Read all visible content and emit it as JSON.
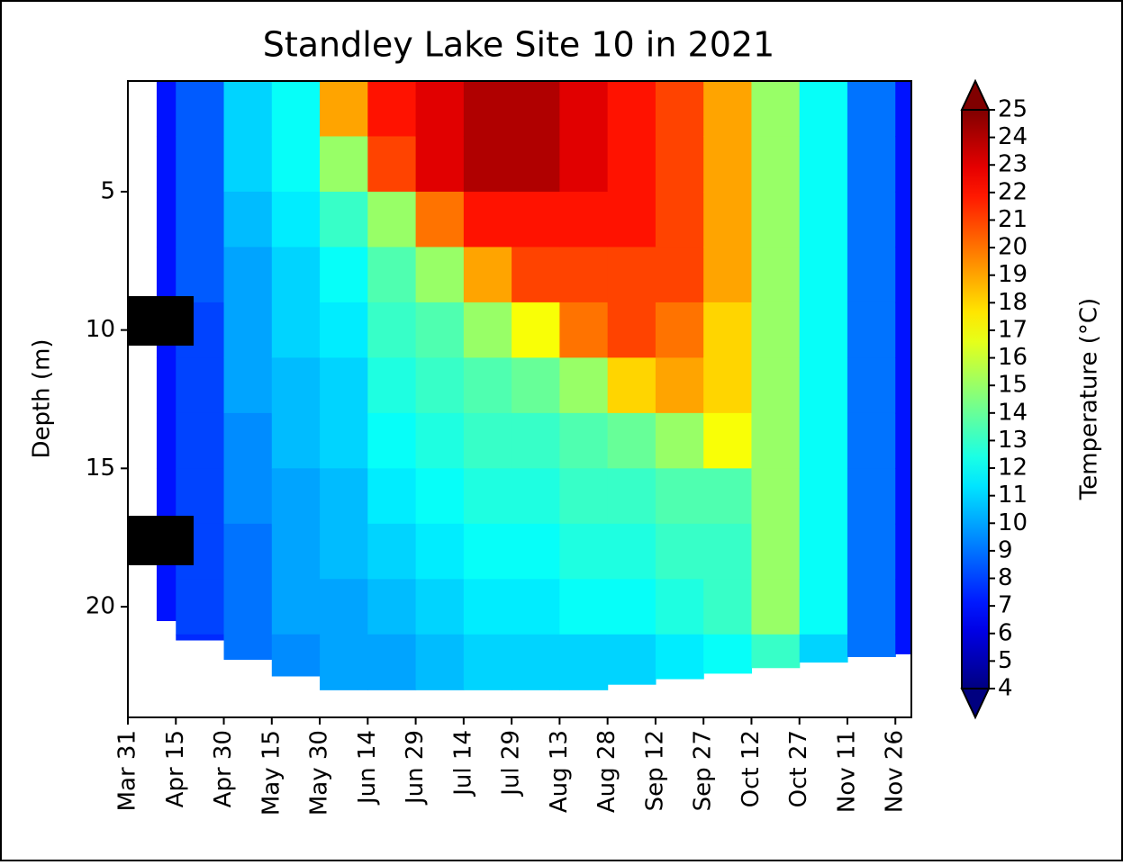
{
  "chart_data": {
    "type": "heatmap",
    "title": "Standley Lake Site 10 in 2021",
    "ylabel": "Depth (m)",
    "colorbar_label": "Temperature (°C)",
    "x": [
      99,
      105,
      120,
      135,
      150,
      165,
      180,
      195,
      210,
      225,
      240,
      255,
      270,
      285,
      300,
      315,
      330
    ],
    "xlim": [
      90,
      335
    ],
    "xticks": [
      {
        "value": 90,
        "label": "Mar 31"
      },
      {
        "value": 105,
        "label": "Apr 15"
      },
      {
        "value": 120,
        "label": "Apr 30"
      },
      {
        "value": 135,
        "label": "May 15"
      },
      {
        "value": 150,
        "label": "May 30"
      },
      {
        "value": 165,
        "label": "Jun 14"
      },
      {
        "value": 180,
        "label": "Jun 29"
      },
      {
        "value": 195,
        "label": "Jul 14"
      },
      {
        "value": 210,
        "label": "Jul 29"
      },
      {
        "value": 225,
        "label": "Aug 13"
      },
      {
        "value": 240,
        "label": "Aug 28"
      },
      {
        "value": 255,
        "label": "Sep 12"
      },
      {
        "value": 270,
        "label": "Sep 27"
      },
      {
        "value": 285,
        "label": "Oct 12"
      },
      {
        "value": 300,
        "label": "Oct 27"
      },
      {
        "value": 315,
        "label": "Nov 11"
      },
      {
        "value": 330,
        "label": "Nov 26"
      }
    ],
    "depths": [
      1,
      3,
      5,
      7,
      9,
      11,
      13,
      15,
      17,
      19,
      21
    ],
    "bottom_depth": [
      20.5,
      21.2,
      21.9,
      22.5,
      23.2,
      23.2,
      23.2,
      23.1,
      23.1,
      23.0,
      22.8,
      22.6,
      22.4,
      22.2,
      22.0,
      21.8,
      21.7
    ],
    "ylim": [
      24,
      1
    ],
    "yticks": [
      5,
      10,
      15,
      20
    ],
    "z": [
      [
        7,
        7,
        7,
        7,
        7,
        7,
        7,
        7,
        7,
        7,
        7
      ],
      [
        8.5,
        8.5,
        8.5,
        8.5,
        8,
        8,
        8,
        8,
        8,
        8,
        7.5
      ],
      [
        11,
        11,
        10.5,
        10,
        10,
        10,
        9.5,
        9.5,
        9,
        9,
        9
      ],
      [
        12,
        12,
        11.5,
        11,
        11,
        10.5,
        10.5,
        10,
        10,
        10,
        9.5
      ],
      [
        19,
        15,
        13,
        12,
        11.5,
        11,
        11,
        10.5,
        10.5,
        10,
        10
      ],
      [
        22,
        21,
        15,
        13.5,
        13,
        12.5,
        12,
        11.5,
        11,
        10.5,
        10
      ],
      [
        23,
        23,
        20,
        15,
        13.5,
        13,
        12.5,
        12,
        11.5,
        11,
        10.5
      ],
      [
        24,
        24,
        22,
        19,
        15,
        13.5,
        13,
        12.5,
        12,
        11.5,
        11
      ],
      [
        24,
        24,
        22,
        21,
        17,
        14,
        13,
        12.5,
        12,
        11.5,
        11
      ],
      [
        23,
        23,
        22,
        21,
        20,
        15,
        13.5,
        13,
        12.5,
        12,
        11
      ],
      [
        22,
        22,
        22,
        21,
        21,
        18,
        14,
        13,
        12.5,
        12,
        11
      ],
      [
        21,
        21,
        21,
        21,
        20,
        19,
        15,
        13.5,
        13,
        12.5,
        11.5
      ],
      [
        19,
        19,
        19,
        19,
        18,
        18,
        17,
        13.5,
        13,
        13,
        12
      ],
      [
        15,
        15,
        15,
        15,
        15,
        15,
        15,
        15,
        15,
        15,
        13
      ],
      [
        12,
        12,
        12,
        12,
        12,
        12,
        12,
        12,
        12,
        12,
        11
      ],
      [
        9,
        9,
        9,
        9,
        9,
        9,
        9,
        9,
        9,
        9,
        9
      ],
      [
        7,
        7,
        7,
        7,
        7,
        7,
        7,
        7,
        7,
        7,
        7
      ]
    ],
    "clim": [
      4,
      25
    ],
    "colormap": "jet",
    "cticks": [
      4,
      5,
      6,
      7,
      8,
      9,
      10,
      11,
      12,
      13,
      14,
      15,
      16,
      17,
      18,
      19,
      20,
      21,
      22,
      23,
      24,
      25
    ]
  }
}
